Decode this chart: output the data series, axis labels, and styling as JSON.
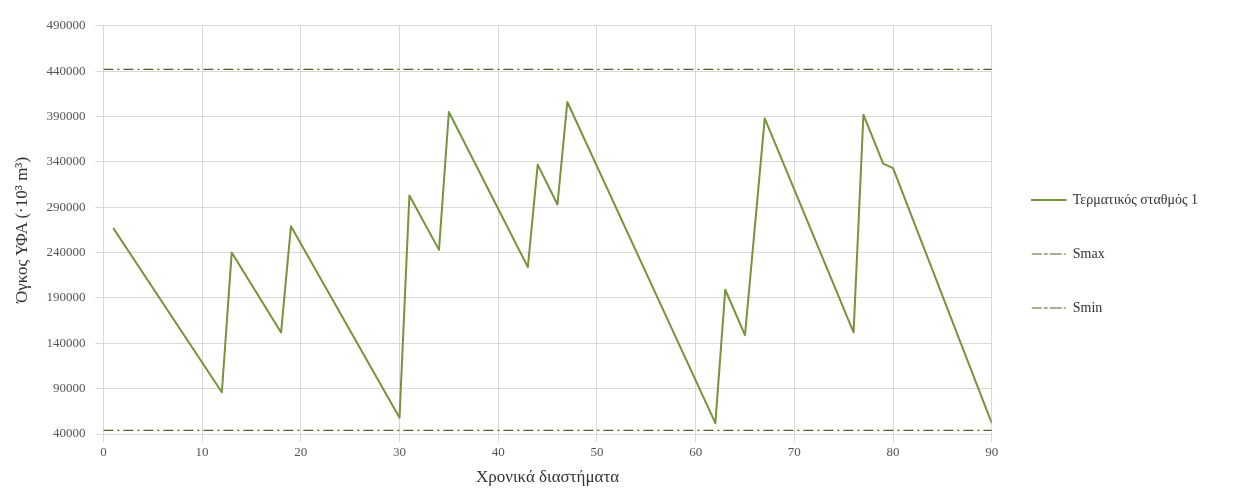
{
  "chart_data": {
    "type": "line",
    "xlabel": "Χρονικά διαστήματα",
    "ylabel": "Όγκος ΥΦΑ (·10³ m³)",
    "x": [
      1,
      12,
      13,
      18,
      19,
      30,
      31,
      34,
      35,
      43,
      44,
      46,
      47,
      62,
      63,
      65,
      67,
      76,
      77,
      79,
      80,
      90
    ],
    "series": [
      {
        "name": "Τερματικός σταθμός 1",
        "color": "#77933c",
        "values": [
          267000,
          86000,
          240000,
          152000,
          269000,
          58000,
          303000,
          243000,
          395000,
          224000,
          337000,
          293000,
          406000,
          52000,
          199000,
          149000,
          388000,
          152000,
          392000,
          338000,
          333000,
          52000
        ]
      }
    ],
    "ref_lines": [
      {
        "axis": "y",
        "value": 442000,
        "label": "Smax",
        "color": "#4f6228",
        "line_style": "dashed"
      },
      {
        "axis": "y",
        "value": 44000,
        "label": "Smin",
        "color": "#4f6228",
        "line_style": "dashed"
      }
    ],
    "xlim": [
      0,
      90
    ],
    "xticks": [
      0,
      10,
      20,
      30,
      40,
      50,
      60,
      70,
      80,
      90
    ],
    "ylim": [
      40000,
      490000
    ],
    "yticks": [
      40000,
      90000,
      140000,
      190000,
      240000,
      290000,
      340000,
      390000,
      440000,
      490000
    ],
    "grid": true,
    "legend": "right",
    "marker": "none",
    "line_style": "solid"
  }
}
